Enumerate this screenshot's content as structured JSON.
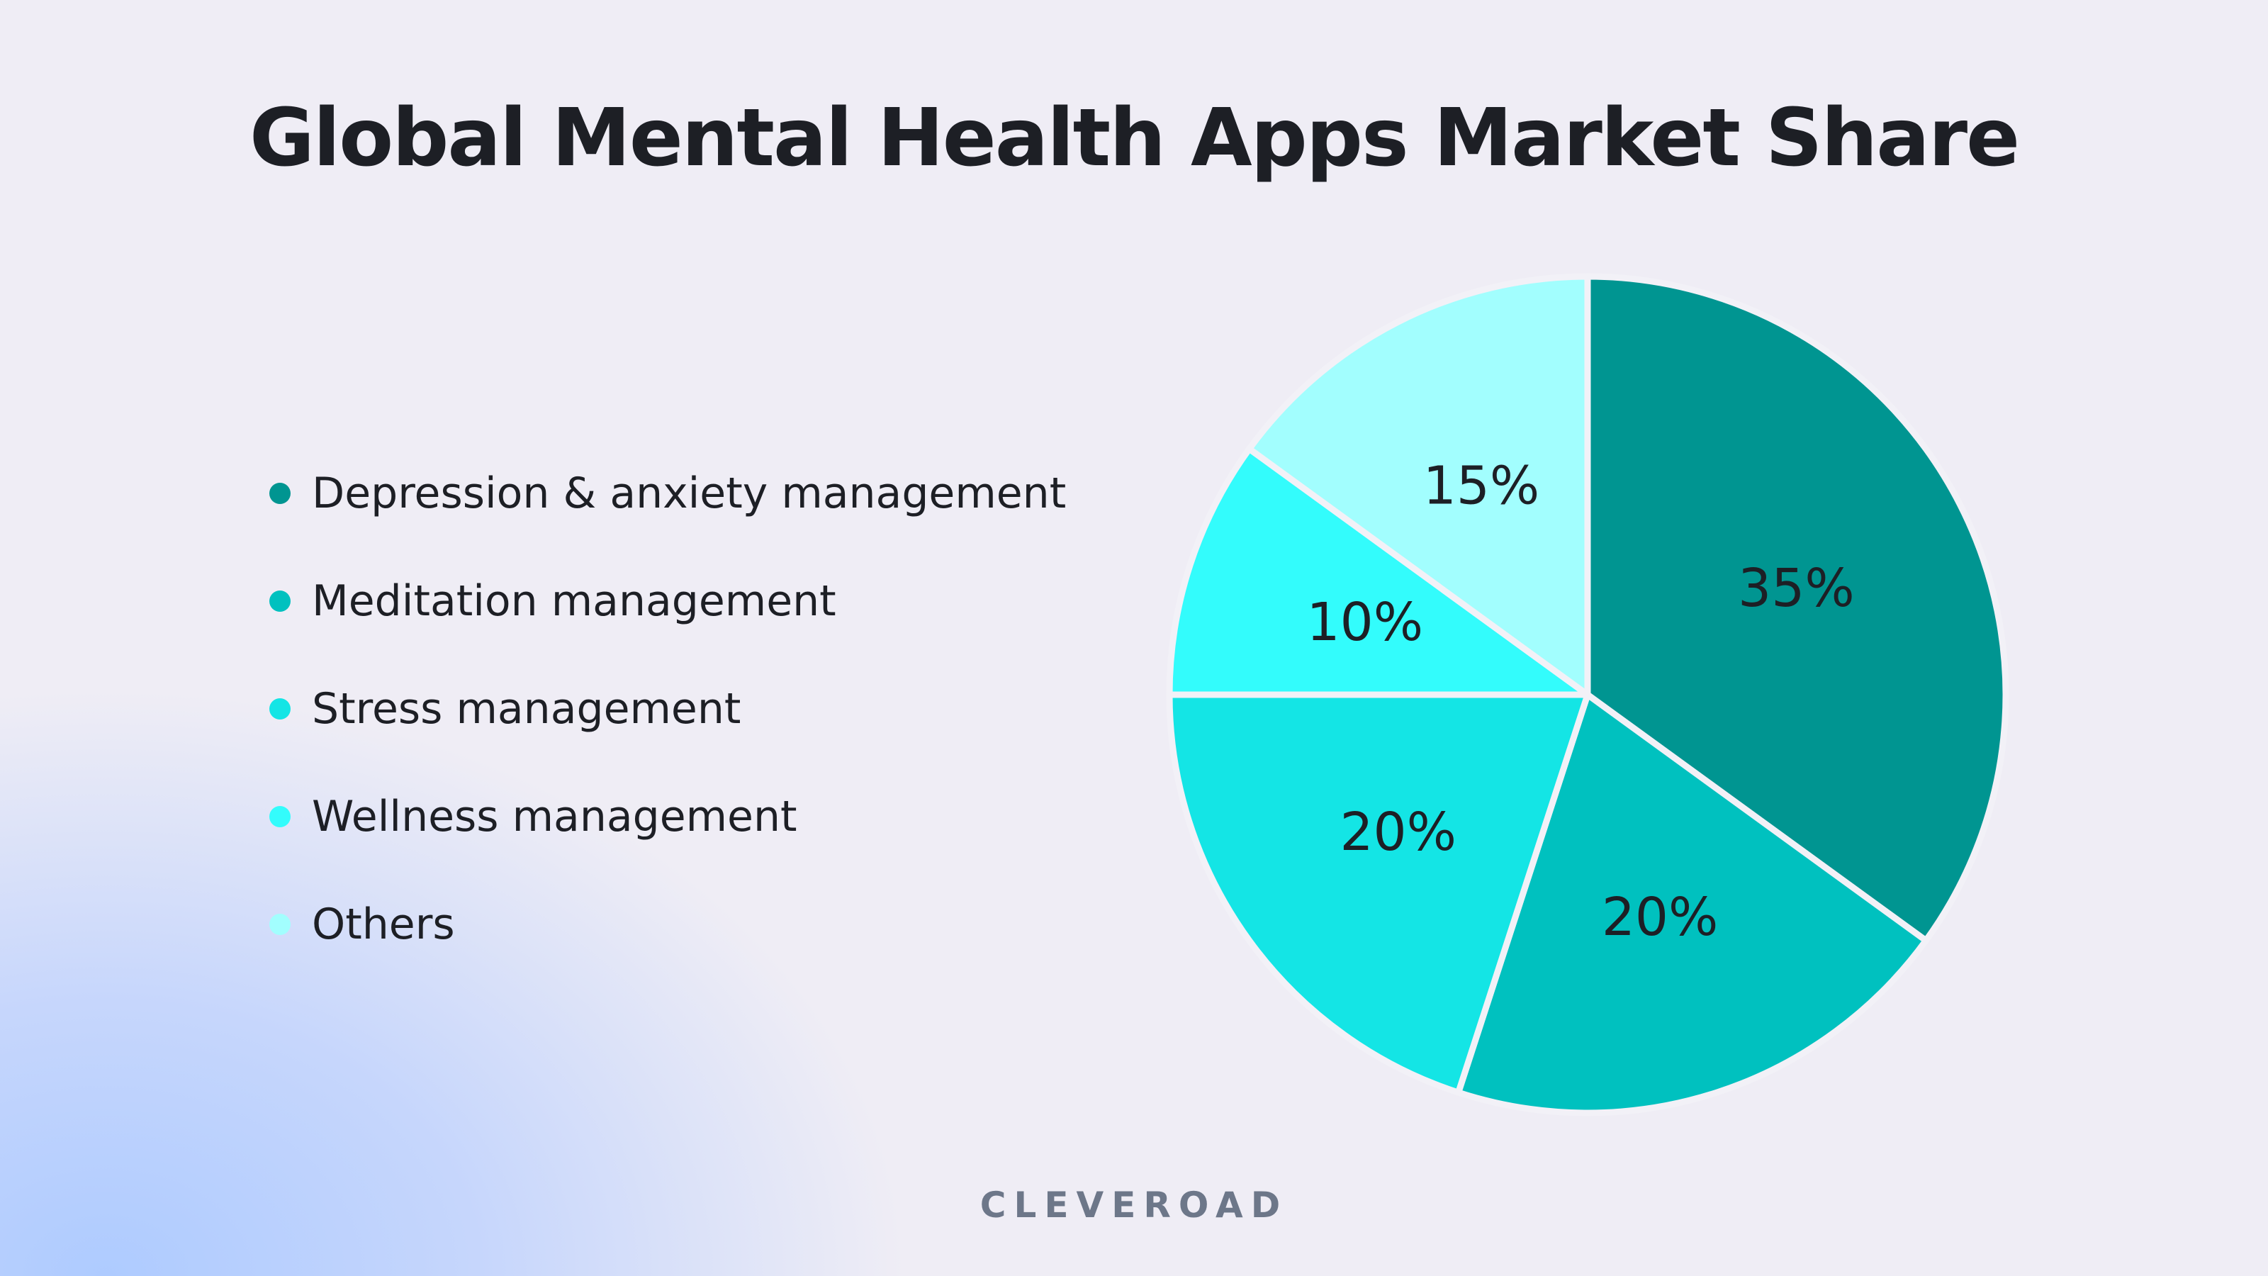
{
  "chart_data": {
    "type": "pie",
    "title": "Global Mental Health Apps Market Share",
    "categories": [
      "Depression & anxiety management",
      "Meditation management",
      "Stress management",
      "Wellness management",
      "Others"
    ],
    "values": [
      35,
      20,
      20,
      10,
      15
    ],
    "labels": [
      "35%",
      "20%",
      "20%",
      "10%",
      "15%"
    ],
    "colors": [
      "#009591",
      "#00c1bf",
      "#14e5e5",
      "#33fcfc",
      "#a2fefe"
    ],
    "legend_position": "left"
  },
  "brand": {
    "text": "CLEVEROAD"
  }
}
